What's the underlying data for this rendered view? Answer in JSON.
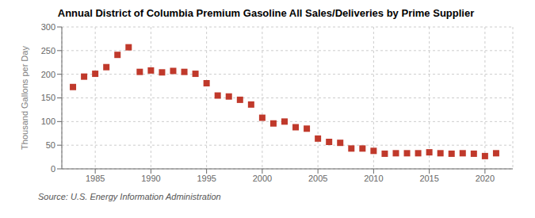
{
  "chart_data": {
    "type": "scatter",
    "title": "Annual District of Columbia Premium Gasoline All Sales/Deliveries by Prime Supplier",
    "ylabel": "Thousand Gallons per Day",
    "annotation": "Source: U.S. Energy Information Administration",
    "x": [
      1983,
      1984,
      1985,
      1986,
      1987,
      1988,
      1989,
      1990,
      1991,
      1992,
      1993,
      1994,
      1995,
      1996,
      1997,
      1998,
      1999,
      2000,
      2001,
      2002,
      2003,
      2004,
      2005,
      2006,
      2007,
      2008,
      2009,
      2010,
      2011,
      2012,
      2013,
      2014,
      2015,
      2016,
      2017,
      2018,
      2019,
      2020,
      2021
    ],
    "values": [
      173,
      195,
      201,
      215,
      241,
      257,
      205,
      208,
      204,
      207,
      205,
      201,
      181,
      155,
      153,
      146,
      136,
      108,
      96,
      100,
      88,
      85,
      64,
      57,
      55,
      43,
      43,
      38,
      32,
      33,
      33,
      33,
      35,
      33,
      32,
      33,
      32,
      27,
      33
    ],
    "color": "#c0392b",
    "marker": "square",
    "xlim": [
      1982,
      2022.5
    ],
    "xticks": [
      1985,
      1990,
      1995,
      2000,
      2005,
      2010,
      2015,
      2020
    ],
    "ylim": [
      0,
      300
    ],
    "yticks": [
      0,
      50,
      100,
      150,
      200,
      250,
      300
    ],
    "grid": true
  }
}
